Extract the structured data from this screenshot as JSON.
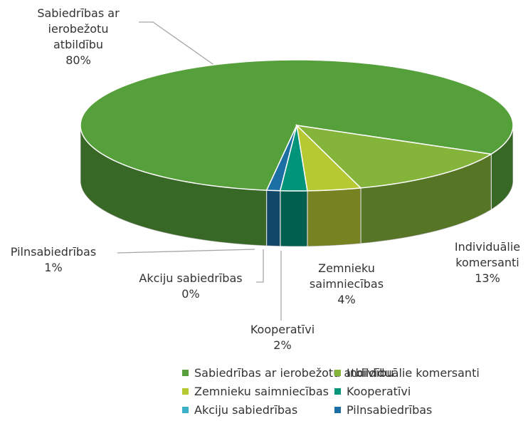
{
  "chart_data": {
    "type": "pie3d",
    "categories": [
      "Sabiedrības ar ierobežotu atbildību",
      "Individuālie komersanti",
      "Zemnieku saimniecības",
      "Kooperatīvi",
      "Akciju sabiedrības",
      "Pilnsabiedrības"
    ],
    "values": [
      80,
      13,
      4,
      2,
      0,
      1
    ],
    "value_labels": [
      "80%",
      "13%",
      "4%",
      "2%",
      "0%",
      "1%"
    ],
    "colors": [
      "#56a03b",
      "#84b43a",
      "#b6c932",
      "#00947a",
      "#3bb1c9",
      "#1b6fa3"
    ],
    "legend": "bottom"
  }
}
